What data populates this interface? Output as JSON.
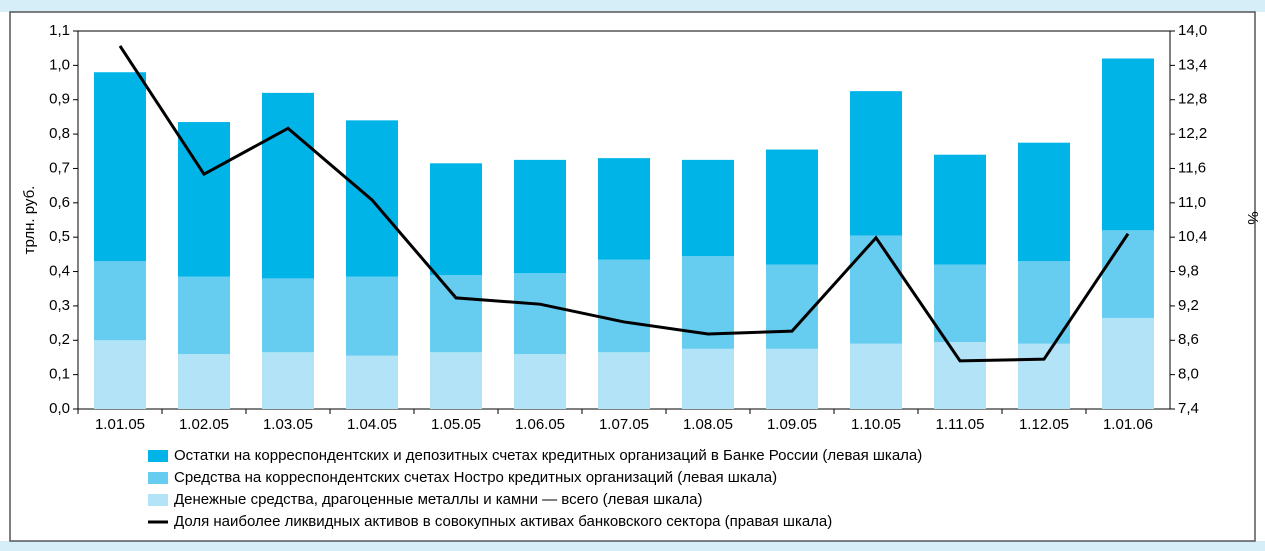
{
  "chart_data": {
    "type": "bar",
    "stacked": true,
    "ylabel": "трлн. руб.",
    "y2label": "%",
    "categories": [
      "1.01.05",
      "1.02.05",
      "1.03.05",
      "1.04.05",
      "1.05.05",
      "1.06.05",
      "1.07.05",
      "1.08.05",
      "1.09.05",
      "1.10.05",
      "1.11.05",
      "1.12.05",
      "1.01.06"
    ],
    "series": [
      {
        "name": "Остатки на корреспондентских и депозитных счетах кредитных организаций в Банке России (левая шкала)",
        "color": "#00b4e8",
        "type": "bar",
        "values": [
          0.55,
          0.45,
          0.54,
          0.455,
          0.325,
          0.33,
          0.295,
          0.28,
          0.335,
          0.42,
          0.32,
          0.345,
          0.5
        ]
      },
      {
        "name": "Средства на корреспондентских счетах Ностро кредитных организаций (левая шкала)",
        "color": "#66ccf0",
        "type": "bar",
        "values": [
          0.23,
          0.225,
          0.215,
          0.23,
          0.225,
          0.235,
          0.27,
          0.27,
          0.245,
          0.315,
          0.225,
          0.24,
          0.255
        ]
      },
      {
        "name": "Денежные средства, драгоценные металлы и камни — всего (левая шкала)",
        "color": "#b3e3f7",
        "type": "bar",
        "values": [
          0.2,
          0.16,
          0.165,
          0.155,
          0.165,
          0.16,
          0.165,
          0.175,
          0.175,
          0.19,
          0.195,
          0.19,
          0.265
        ]
      },
      {
        "name": "Доля наиболее ликвидных активов в совокупных активах банковского сектора (правая шкала)",
        "color": "#000000",
        "type": "line",
        "axis": "y2",
        "values": [
          13.74,
          11.5,
          12.3,
          11.05,
          9.34,
          9.23,
          8.92,
          8.71,
          8.76,
          10.39,
          8.24,
          8.27,
          10.46
        ]
      }
    ],
    "ylim": [
      0,
      1.1
    ],
    "yticks": [
      {
        "value": 0,
        "label": "0,0"
      },
      {
        "value": 0.1,
        "label": "0,1"
      },
      {
        "value": 0.2,
        "label": "0,2"
      },
      {
        "value": 0.3,
        "label": "0,3"
      },
      {
        "value": 0.4,
        "label": "0,4"
      },
      {
        "value": 0.5,
        "label": "0,5"
      },
      {
        "value": 0.6,
        "label": "0,6"
      },
      {
        "value": 0.7,
        "label": "0,7"
      },
      {
        "value": 0.8,
        "label": "0,8"
      },
      {
        "value": 0.9,
        "label": "0,9"
      },
      {
        "value": 1.0,
        "label": "1,0"
      },
      {
        "value": 1.1,
        "label": "1,1"
      }
    ],
    "y2lim": [
      7.4,
      14.0
    ],
    "y2ticks": [
      {
        "value": 7.4,
        "label": "7,4"
      },
      {
        "value": 8.0,
        "label": "8,0"
      },
      {
        "value": 8.6,
        "label": "8,6"
      },
      {
        "value": 9.2,
        "label": "9,2"
      },
      {
        "value": 9.8,
        "label": "9,8"
      },
      {
        "value": 10.4,
        "label": "10,4"
      },
      {
        "value": 11.0,
        "label": "11,0"
      },
      {
        "value": 11.6,
        "label": "11,6"
      },
      {
        "value": 12.2,
        "label": "12,2"
      },
      {
        "value": 12.8,
        "label": "12,8"
      },
      {
        "value": 13.4,
        "label": "13,4"
      },
      {
        "value": 14.0,
        "label": "14,0"
      }
    ],
    "legend": "bottom"
  }
}
